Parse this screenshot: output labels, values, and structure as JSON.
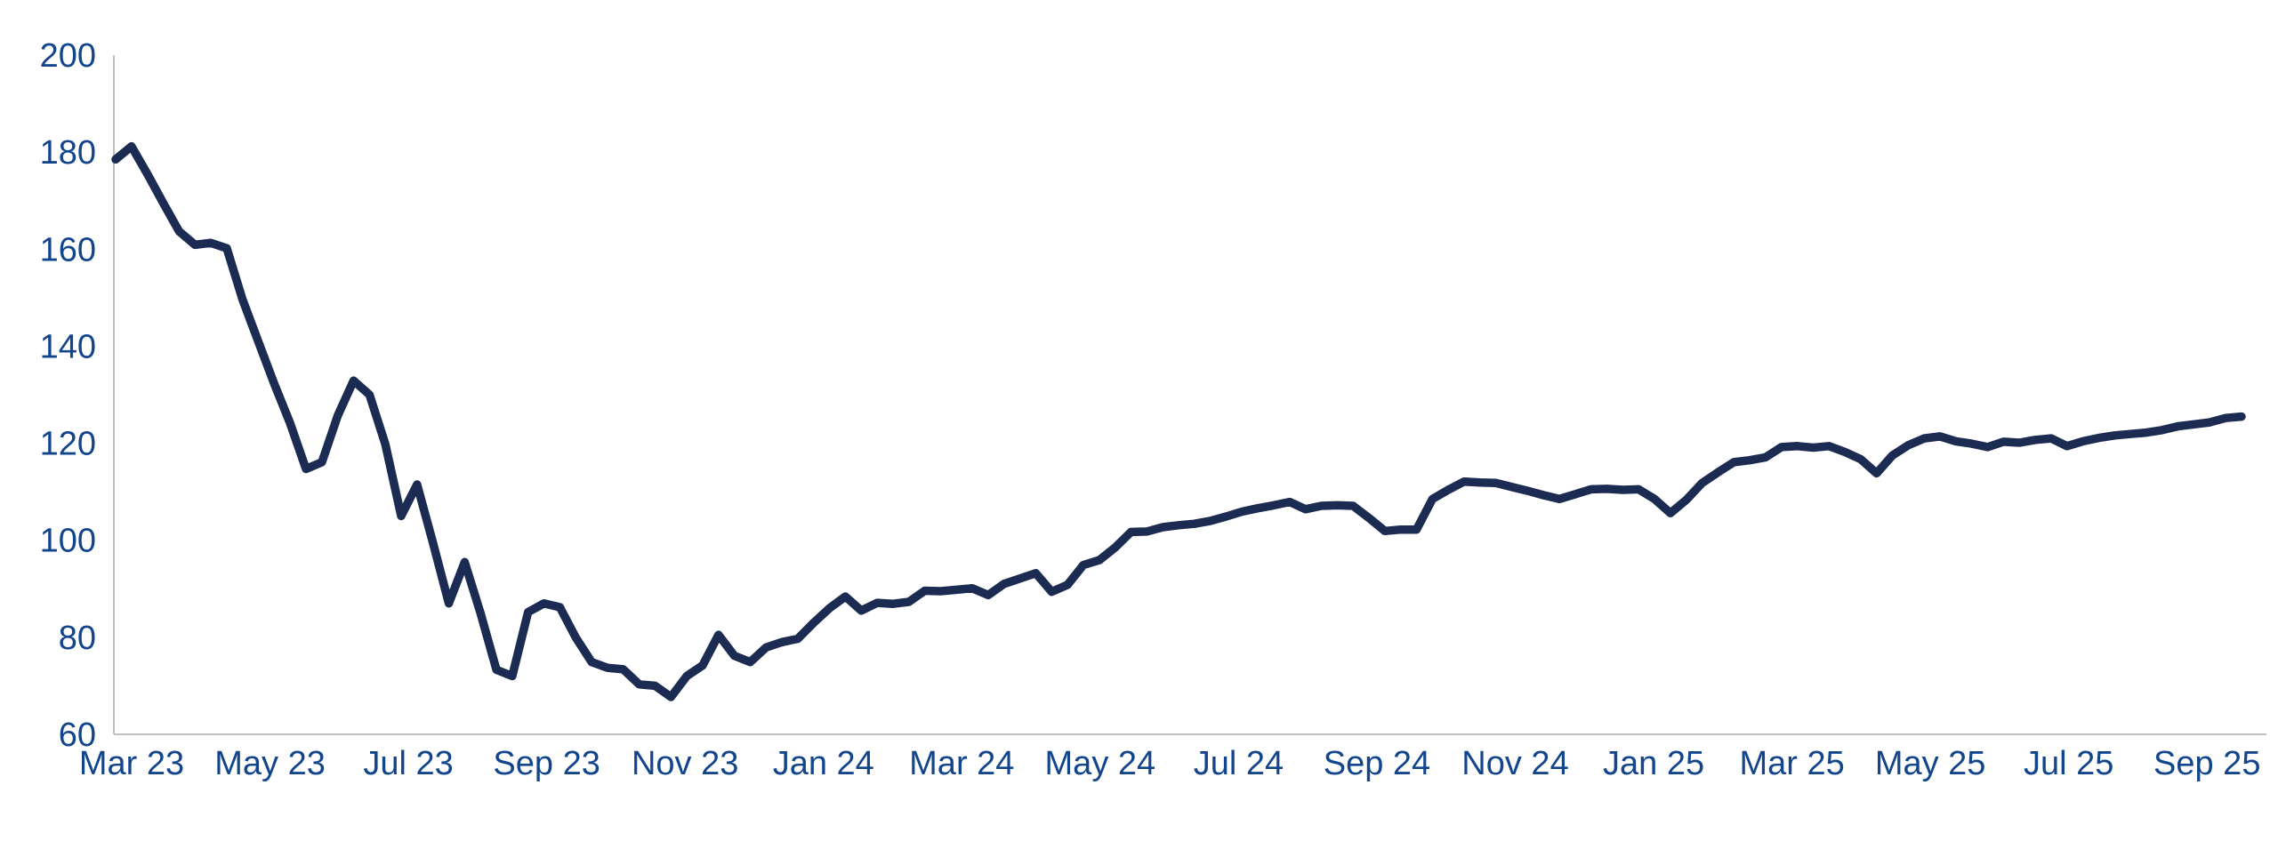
{
  "colors": {
    "background": "#ffffff",
    "accent_bar": "#26355a",
    "line": "#1b2b52",
    "axis_line": "#c0c0c0",
    "tick_label": "#12458c"
  },
  "chart_data": {
    "type": "line",
    "title": "",
    "legend": false,
    "grid": false,
    "y_axis": {
      "min": 60,
      "max": 200,
      "tick_interval": 20,
      "ticks": [
        "200",
        "180",
        "160",
        "140",
        "120",
        "100",
        "80",
        "60"
      ]
    },
    "x_axis": {
      "tick_labels": [
        "Mar 23",
        "May 23",
        "Jul 23",
        "Sep 23",
        "Nov 23",
        "Jan 24",
        "Mar 24",
        "May 24",
        "Jul 24",
        "Sep 24",
        "Nov 24",
        "Jan 25",
        "Mar 25",
        "May 25",
        "Jul 25",
        "Sep 25"
      ]
    },
    "series": [
      {
        "start_date": "2023-02-24",
        "interval_days": 7,
        "values": [
          178.5,
          181.2,
          175.5,
          169.5,
          163.7,
          160.9,
          161.3,
          160.2,
          149.6,
          140.9,
          132.2,
          124.1,
          114.7,
          116.1,
          125.7,
          132.9,
          130.0,
          119.8,
          105.0,
          111.5,
          99.5,
          87.0,
          95.5,
          85.0,
          73.3,
          72.0,
          85.2,
          87.0,
          86.2,
          80.0,
          74.9,
          73.7,
          73.4,
          70.3,
          70.0,
          67.7,
          72.0,
          74.2,
          80.5,
          76.2,
          74.9,
          77.9,
          79.0,
          79.7,
          83.0,
          86.0,
          88.4,
          85.5,
          87.1,
          86.9,
          87.3,
          89.6,
          89.5,
          89.8,
          90.1,
          88.7,
          91.0,
          92.1,
          93.2,
          89.4,
          90.8,
          94.9,
          95.9,
          98.5,
          101.7,
          101.8,
          102.7,
          103.1,
          103.4,
          104.0,
          104.9,
          105.9,
          106.6,
          107.2,
          107.9,
          106.4,
          107.1,
          107.2,
          107.1,
          104.6,
          101.9,
          102.2,
          102.2,
          108.5,
          110.4,
          112.1,
          111.9,
          111.8,
          111.0,
          110.2,
          109.3,
          108.5,
          109.5,
          110.5,
          110.6,
          110.4,
          110.5,
          108.5,
          105.6,
          108.3,
          111.8,
          114.0,
          116.1,
          116.5,
          117.1,
          119.2,
          119.4,
          119.1,
          119.4,
          118.2,
          116.7,
          113.8,
          117.5,
          119.6,
          121.0,
          121.4,
          120.4,
          119.9,
          119.2,
          120.3,
          120.1,
          120.7,
          121.0,
          119.4,
          120.4,
          121.1,
          121.6,
          121.9,
          122.2,
          122.7,
          123.5,
          123.9,
          124.3,
          125.2,
          125.5
        ]
      }
    ]
  }
}
